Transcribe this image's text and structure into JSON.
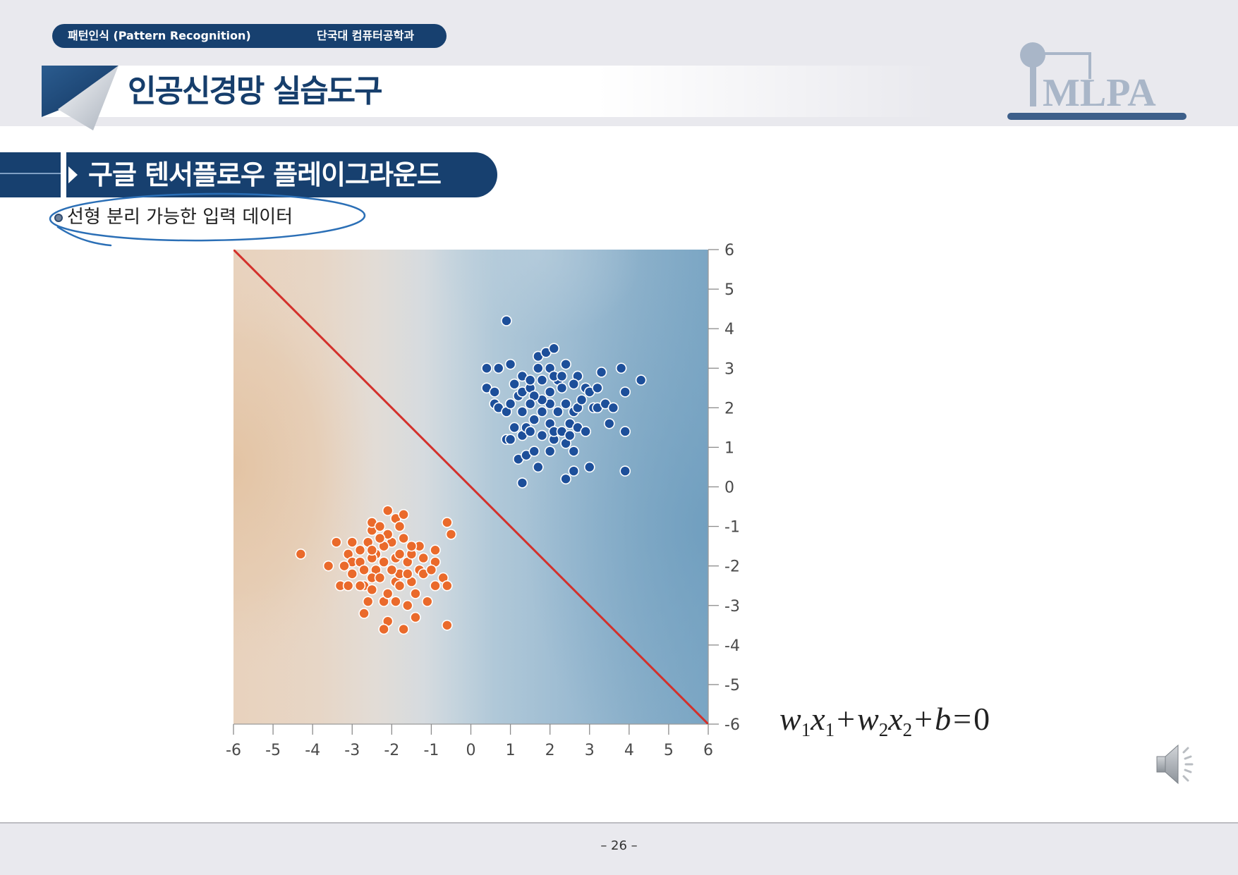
{
  "header": {
    "course": "패턴인식 (Pattern Recognition)",
    "department": "단국대 컴퓨터공학과",
    "title": "인공신경망 실습도구",
    "logo_text": "MLPA"
  },
  "section": {
    "heading": "구글 텐서플로우 플레이그라운드",
    "bullet": "선형 분리 가능한 입력 데이터"
  },
  "equation": {
    "parts": [
      "w",
      "1",
      "x",
      "1",
      "+",
      "w",
      "2",
      "x",
      "2",
      "+",
      "b",
      "=",
      "0"
    ]
  },
  "footer": {
    "page_number": "– 26 –"
  },
  "icons": {
    "speaker": "speaker-icon",
    "bullet": "bullet-dot-icon",
    "section": "chevron-right-icon"
  },
  "colors": {
    "navy": "#17406f",
    "annotation_ink": "#2b6fb6",
    "logo_gray": "#a9b6c8"
  },
  "chart_data": {
    "type": "scatter",
    "xlim": [
      -6,
      6
    ],
    "ylim": [
      -6,
      6
    ],
    "xticks": [
      "-6",
      "-5",
      "-4",
      "-3",
      "-2",
      "-1",
      "0",
      "1",
      "2",
      "3",
      "4",
      "5",
      "6"
    ],
    "yticks": [
      "6",
      "5",
      "4",
      "3",
      "2",
      "1",
      "0",
      "-1",
      "-2",
      "-3",
      "-4",
      "-5",
      "-6"
    ],
    "y_axis_position": "right",
    "grid": false,
    "legend": "none",
    "background": "shaded regions, orange (left) to blue (right)",
    "boundary": {
      "color": "#d3302b",
      "x": [
        -6,
        6
      ],
      "y": [
        6,
        -6
      ]
    },
    "series": [
      {
        "color": "#ea6a2b",
        "points": [
          [
            -4.3,
            -1.7
          ],
          [
            -3.4,
            -1.4
          ],
          [
            -3.6,
            -2.0
          ],
          [
            -3.3,
            -2.5
          ],
          [
            -3.1,
            -2.5
          ],
          [
            -3.0,
            -1.4
          ],
          [
            -3.1,
            -1.7
          ],
          [
            -3.0,
            -1.9
          ],
          [
            -3.2,
            -2.0
          ],
          [
            -3.0,
            -2.2
          ],
          [
            -2.8,
            -1.6
          ],
          [
            -2.8,
            -1.9
          ],
          [
            -2.7,
            -2.1
          ],
          [
            -2.6,
            -1.4
          ],
          [
            -2.5,
            -1.1
          ],
          [
            -2.5,
            -0.9
          ],
          [
            -2.3,
            -1.0
          ],
          [
            -2.1,
            -0.6
          ],
          [
            -1.9,
            -0.8
          ],
          [
            -1.7,
            -0.7
          ],
          [
            -1.8,
            -1.0
          ],
          [
            -1.7,
            -1.3
          ],
          [
            -2.0,
            -1.4
          ],
          [
            -2.2,
            -1.5
          ],
          [
            -2.4,
            -1.7
          ],
          [
            -2.5,
            -1.8
          ],
          [
            -2.4,
            -2.1
          ],
          [
            -2.5,
            -2.3
          ],
          [
            -2.7,
            -2.5
          ],
          [
            -2.6,
            -2.9
          ],
          [
            -2.7,
            -3.2
          ],
          [
            -2.2,
            -2.9
          ],
          [
            -1.9,
            -2.9
          ],
          [
            -2.1,
            -2.7
          ],
          [
            -1.9,
            -2.4
          ],
          [
            -1.8,
            -2.2
          ],
          [
            -2.0,
            -2.1
          ],
          [
            -2.2,
            -1.9
          ],
          [
            -1.9,
            -1.8
          ],
          [
            -1.8,
            -1.7
          ],
          [
            -1.6,
            -1.9
          ],
          [
            -1.5,
            -1.7
          ],
          [
            -1.3,
            -1.5
          ],
          [
            -1.2,
            -1.8
          ],
          [
            -1.3,
            -2.1
          ],
          [
            -1.2,
            -2.2
          ],
          [
            -0.9,
            -1.9
          ],
          [
            -0.9,
            -1.6
          ],
          [
            -1.5,
            -2.4
          ],
          [
            -1.4,
            -2.7
          ],
          [
            -1.6,
            -3.0
          ],
          [
            -1.4,
            -3.3
          ],
          [
            -1.7,
            -3.6
          ],
          [
            -2.1,
            -3.4
          ],
          [
            -2.2,
            -3.6
          ],
          [
            -1.1,
            -2.9
          ],
          [
            -0.9,
            -2.5
          ],
          [
            -0.7,
            -2.3
          ],
          [
            -0.6,
            -2.5
          ],
          [
            -0.6,
            -3.5
          ],
          [
            -0.6,
            -0.9
          ],
          [
            -0.5,
            -1.2
          ],
          [
            -2.8,
            -2.5
          ],
          [
            -2.5,
            -2.6
          ],
          [
            -2.3,
            -2.3
          ],
          [
            -1.8,
            -2.5
          ],
          [
            -1.6,
            -2.2
          ],
          [
            -2.1,
            -1.2
          ],
          [
            -2.3,
            -1.3
          ],
          [
            -1.5,
            -1.5
          ],
          [
            -1.0,
            -2.1
          ],
          [
            -2.5,
            -1.6
          ]
        ]
      },
      {
        "color": "#1d4f9a",
        "points": [
          [
            0.9,
            4.2
          ],
          [
            0.4,
            3.0
          ],
          [
            0.7,
            3.0
          ],
          [
            1.0,
            3.1
          ],
          [
            1.3,
            2.8
          ],
          [
            0.4,
            2.5
          ],
          [
            0.6,
            2.4
          ],
          [
            0.6,
            2.1
          ],
          [
            0.7,
            2.0
          ],
          [
            1.1,
            2.6
          ],
          [
            1.2,
            2.3
          ],
          [
            1.3,
            2.4
          ],
          [
            1.5,
            2.5
          ],
          [
            1.5,
            2.7
          ],
          [
            1.7,
            3.0
          ],
          [
            1.7,
            3.3
          ],
          [
            1.9,
            3.4
          ],
          [
            2.1,
            3.5
          ],
          [
            2.0,
            3.0
          ],
          [
            2.4,
            3.1
          ],
          [
            2.7,
            2.8
          ],
          [
            2.2,
            2.7
          ],
          [
            2.3,
            2.5
          ],
          [
            2.6,
            2.6
          ],
          [
            2.9,
            2.5
          ],
          [
            3.0,
            2.4
          ],
          [
            3.2,
            2.5
          ],
          [
            3.3,
            2.9
          ],
          [
            3.8,
            3.0
          ],
          [
            4.3,
            2.7
          ],
          [
            3.9,
            2.4
          ],
          [
            3.1,
            2.0
          ],
          [
            3.2,
            2.0
          ],
          [
            3.4,
            2.1
          ],
          [
            3.6,
            2.0
          ],
          [
            3.5,
            1.6
          ],
          [
            3.9,
            1.4
          ],
          [
            3.9,
            0.4
          ],
          [
            3.0,
            0.5
          ],
          [
            2.6,
            0.4
          ],
          [
            2.4,
            0.2
          ],
          [
            1.3,
            0.1
          ],
          [
            1.2,
            0.7
          ],
          [
            1.4,
            0.8
          ],
          [
            1.7,
            0.5
          ],
          [
            1.6,
            0.9
          ],
          [
            2.0,
            0.9
          ],
          [
            2.1,
            1.2
          ],
          [
            2.4,
            1.1
          ],
          [
            2.6,
            0.9
          ],
          [
            0.9,
            1.2
          ],
          [
            1.0,
            1.2
          ],
          [
            1.3,
            1.3
          ],
          [
            1.4,
            1.5
          ],
          [
            1.5,
            1.4
          ],
          [
            1.8,
            1.3
          ],
          [
            2.0,
            1.6
          ],
          [
            2.1,
            1.4
          ],
          [
            2.3,
            1.4
          ],
          [
            2.5,
            1.6
          ],
          [
            2.7,
            1.5
          ],
          [
            2.9,
            1.4
          ],
          [
            2.5,
            1.3
          ],
          [
            1.6,
            1.7
          ],
          [
            1.8,
            1.9
          ],
          [
            2.0,
            2.1
          ],
          [
            2.2,
            1.9
          ],
          [
            2.4,
            2.1
          ],
          [
            2.6,
            1.9
          ],
          [
            1.8,
            2.2
          ],
          [
            2.0,
            2.4
          ],
          [
            1.6,
            2.3
          ],
          [
            1.5,
            2.1
          ],
          [
            1.3,
            1.9
          ],
          [
            0.9,
            1.9
          ],
          [
            1.0,
            2.1
          ],
          [
            2.1,
            2.8
          ],
          [
            2.3,
            2.8
          ],
          [
            1.8,
            2.7
          ],
          [
            1.1,
            1.5
          ],
          [
            2.7,
            2.0
          ],
          [
            2.8,
            2.2
          ]
        ]
      }
    ]
  }
}
